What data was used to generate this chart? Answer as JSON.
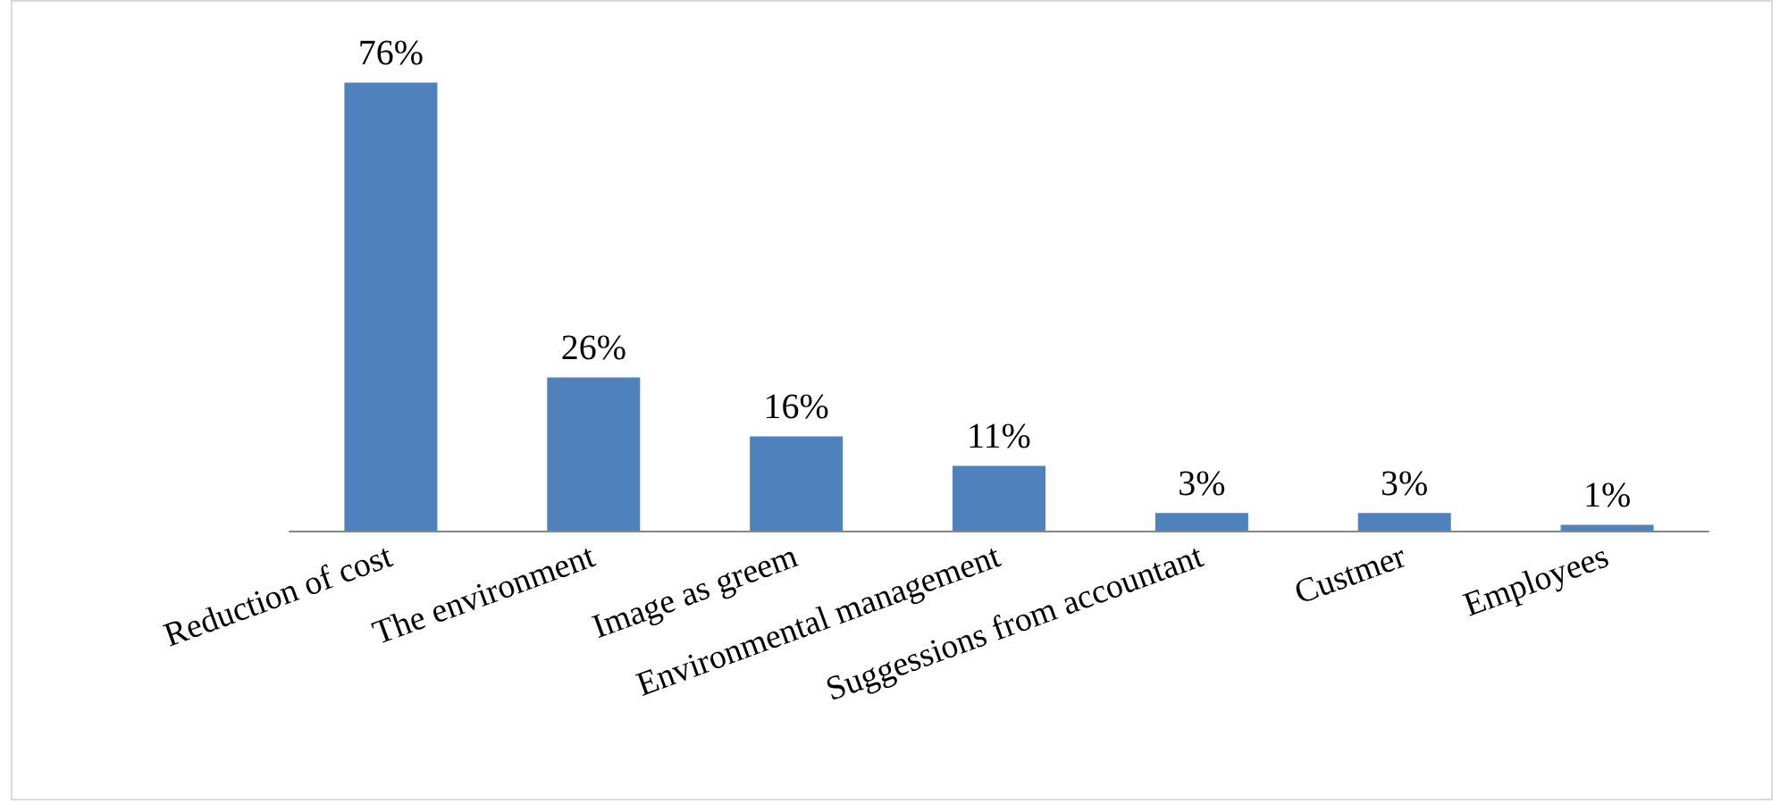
{
  "chart_data": {
    "type": "bar",
    "categories": [
      "Reduction of cost",
      "The environment",
      "Image as greem",
      "Environmental management",
      "Suggessions from accountant",
      "Custmer",
      "Employees"
    ],
    "values": [
      76,
      26,
      16,
      11,
      3,
      3,
      1
    ],
    "color": "#4f81bd",
    "value_labels": [
      "76%",
      "26%",
      "16%",
      "11%",
      "3%",
      "3%",
      "1%"
    ],
    "tick_labels": "x",
    "grid": false
  }
}
